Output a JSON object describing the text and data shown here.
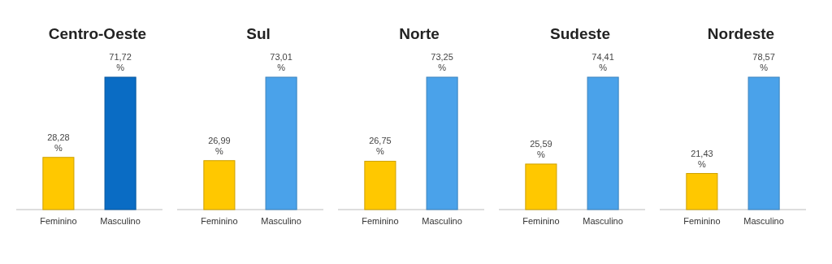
{
  "chart_data": [
    {
      "type": "bar",
      "title": "Centro-Oeste",
      "categories": [
        "Feminino",
        "Masculino"
      ],
      "values": [
        28.28,
        71.72
      ],
      "colors": [
        "#ffc800",
        "#0a6cc4"
      ],
      "tick_labels": "x",
      "value_labels": [
        "28,28 %",
        "71,72 %"
      ]
    },
    {
      "type": "bar",
      "title": "Sul",
      "categories": [
        "Feminino",
        "Masculino"
      ],
      "values": [
        26.99,
        73.01
      ],
      "colors": [
        "#ffc800",
        "#4aa2ea"
      ],
      "tick_labels": "x",
      "value_labels": [
        "26,99 %",
        "73,01 %"
      ]
    },
    {
      "type": "bar",
      "title": "Norte",
      "categories": [
        "Feminino",
        "Masculino"
      ],
      "values": [
        26.75,
        73.25
      ],
      "colors": [
        "#ffc800",
        "#4aa2ea"
      ],
      "tick_labels": "x",
      "value_labels": [
        "26,75 %",
        "73,25 %"
      ]
    },
    {
      "type": "bar",
      "title": "Sudeste",
      "categories": [
        "Feminino",
        "Masculino"
      ],
      "values": [
        25.59,
        74.41
      ],
      "colors": [
        "#ffc800",
        "#4aa2ea"
      ],
      "tick_labels": "x",
      "value_labels": [
        "25,59 %",
        "74,41 %"
      ]
    },
    {
      "type": "bar",
      "title": "Nordeste",
      "categories": [
        "Feminino",
        "Masculino"
      ],
      "values": [
        21.43,
        78.57
      ],
      "colors": [
        "#ffc800",
        "#4aa2ea"
      ],
      "tick_labels": "x",
      "value_labels": [
        "21,43 %",
        "78,57 %"
      ]
    }
  ]
}
